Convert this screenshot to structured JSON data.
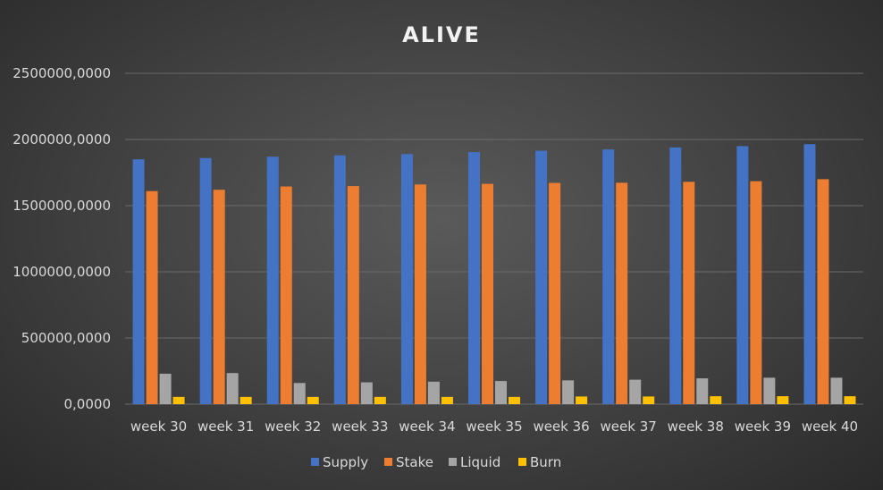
{
  "chart_data": {
    "type": "bar",
    "title": "ALIVE",
    "xlabel": "",
    "ylabel": "",
    "categories": [
      "week 30",
      "week 31",
      "week 32",
      "week 33",
      "week 34",
      "week 35",
      "week 36",
      "week 37",
      "week 38",
      "week 39",
      "week 40"
    ],
    "series": [
      {
        "name": "Supply",
        "color": "#4472C4",
        "values": [
          1850000,
          1860000,
          1870000,
          1880000,
          1890000,
          1905000,
          1915000,
          1925000,
          1940000,
          1950000,
          1965000
        ]
      },
      {
        "name": "Stake",
        "color": "#ED7D31",
        "values": [
          1610000,
          1620000,
          1645000,
          1648000,
          1660000,
          1665000,
          1672000,
          1673000,
          1680000,
          1685000,
          1700000
        ]
      },
      {
        "name": "Liquid",
        "color": "#A5A5A5",
        "values": [
          230000,
          235000,
          160000,
          165000,
          170000,
          175000,
          180000,
          185000,
          195000,
          200000,
          200000
        ]
      },
      {
        "name": "Burn",
        "color": "#FFC000",
        "values": [
          55000,
          55000,
          55000,
          55000,
          55000,
          55000,
          58000,
          58000,
          60000,
          60000,
          60000
        ]
      }
    ],
    "ylim": [
      0,
      2500000
    ],
    "yticks": [
      0,
      500000,
      1000000,
      1500000,
      2000000,
      2500000
    ],
    "ytick_labels": [
      "0,0000",
      "500000,0000",
      "1000000,0000",
      "1500000,0000",
      "2000000,0000",
      "2500000,0000"
    ],
    "grid": true,
    "legend_position": "bottom"
  }
}
